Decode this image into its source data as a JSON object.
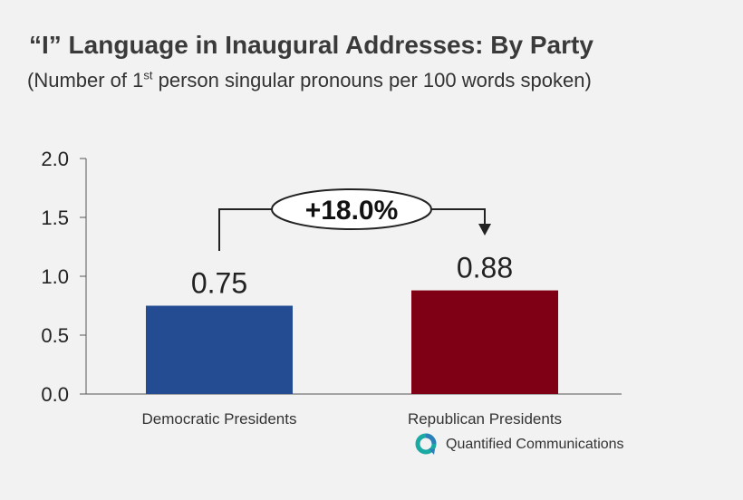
{
  "header": {
    "title": "“I” Language in Inaugural Addresses: By Party",
    "subtitle_pre": "(Number  of 1",
    "subtitle_sup": "st",
    "subtitle_post": " person singular pronouns per 100 words spoken)"
  },
  "chart_data": {
    "type": "bar",
    "categories": [
      "Democratic Presidents",
      "Republican  Presidents"
    ],
    "values": [
      0.75,
      0.88
    ],
    "value_labels": [
      "0.75",
      "0.88"
    ],
    "colors": [
      "#234c93",
      "#7f0015"
    ],
    "ylim": [
      0,
      2.0
    ],
    "yticks": [
      "0.0",
      "0.5",
      "1.0",
      "1.5",
      "2.0"
    ],
    "ytick_values": [
      0,
      0.5,
      1.0,
      1.5,
      2.0
    ],
    "annotation": "+18.0%",
    "grid": false,
    "legend": "none"
  },
  "branding": {
    "logo_text": "Quantified Communications",
    "logo_colors": [
      "#1aa9a3",
      "#2c7fb8"
    ]
  }
}
